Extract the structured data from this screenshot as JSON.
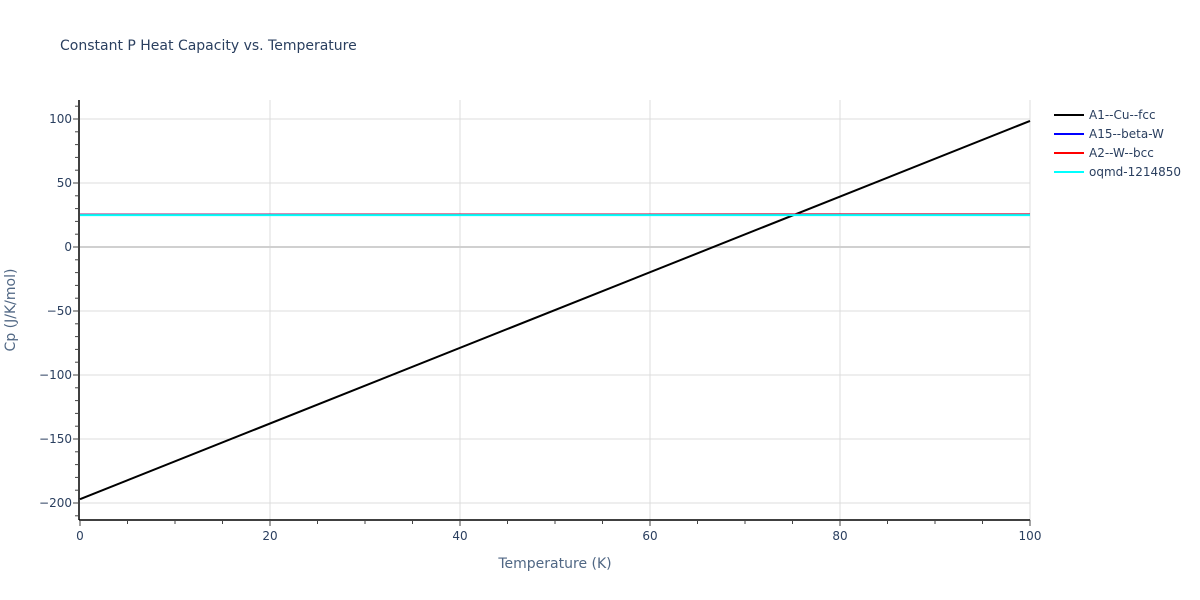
{
  "chart_data": {
    "type": "line",
    "title": "Constant P Heat Capacity vs. Temperature",
    "xlabel": "Temperature (K)",
    "ylabel": "Cp (J/K/mol)",
    "xlim": [
      0,
      100
    ],
    "ylim": [
      -212,
      115
    ],
    "x_ticks": [
      0,
      20,
      40,
      60,
      80,
      100
    ],
    "y_ticks": [
      -200,
      -150,
      -100,
      -50,
      0,
      50,
      100
    ],
    "y_tick_labels": [
      "−200",
      "−150",
      "−100",
      "−50",
      "0",
      "50",
      "100"
    ],
    "grid": true,
    "legend_position": "right-top",
    "series": [
      {
        "name": "A1--Cu--fcc",
        "color": "#000000",
        "x": [
          0,
          100
        ],
        "values": [
          -197,
          98.5
        ]
      },
      {
        "name": "A15--beta-W",
        "color": "#0000ff",
        "x": [
          0,
          100
        ],
        "values": [
          25.3,
          25.5
        ]
      },
      {
        "name": "A2--W--bcc",
        "color": "#ff0000",
        "x": [
          0,
          100
        ],
        "values": [
          25.2,
          25.4
        ]
      },
      {
        "name": "oqmd-1214850",
        "color": "#00ffff",
        "x": [
          0,
          100
        ],
        "values": [
          24.9,
          24.9
        ]
      }
    ]
  }
}
